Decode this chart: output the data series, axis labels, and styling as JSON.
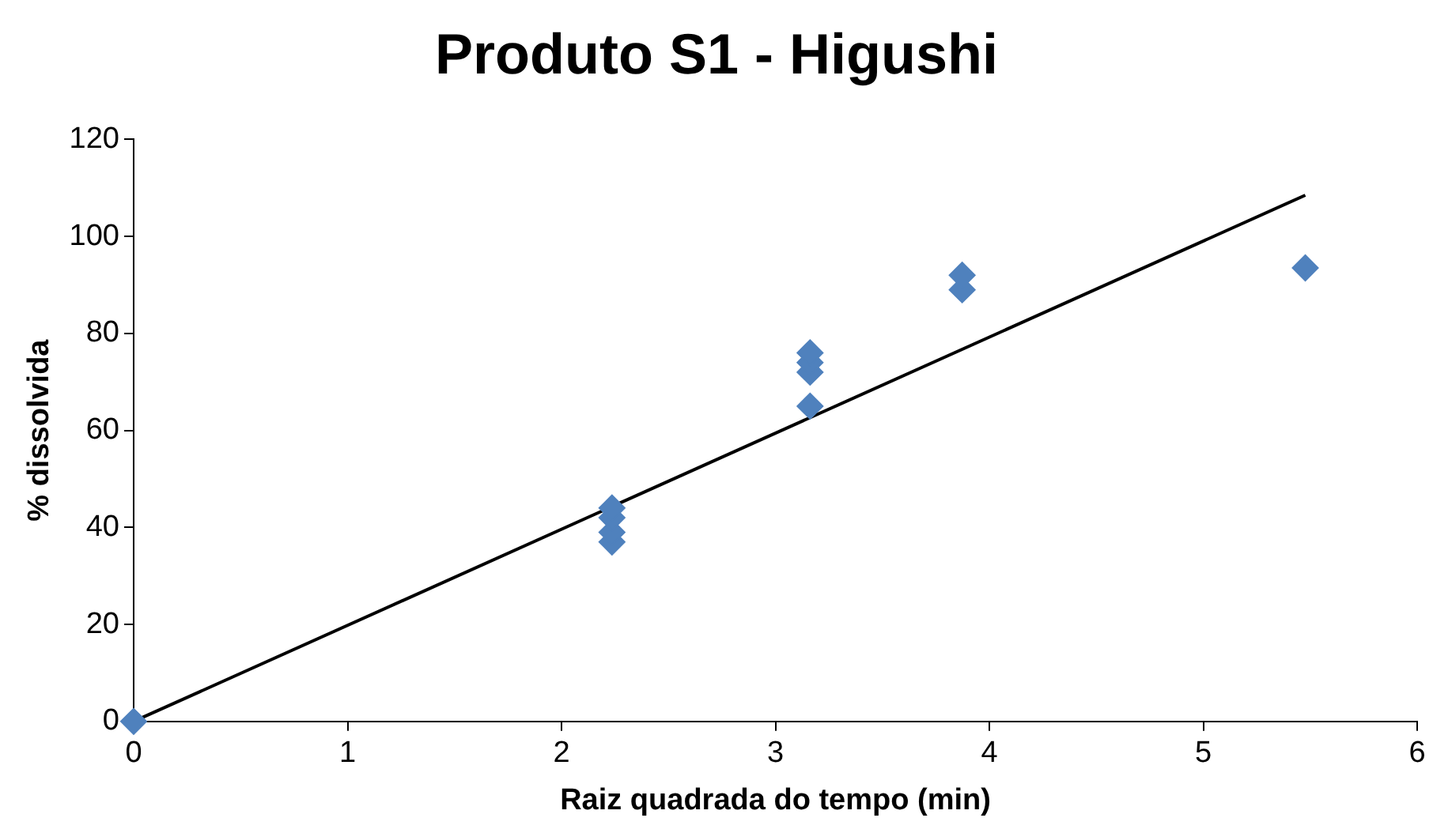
{
  "chart_data": {
    "type": "scatter",
    "title": "Produto S1 - Higushi",
    "xlabel": "Raiz quadrada do tempo (min)",
    "ylabel": "% dissolvida",
    "xlim": [
      0,
      6
    ],
    "xticks": [
      0,
      1,
      2,
      3,
      4,
      5,
      6
    ],
    "ylim": [
      0,
      120
    ],
    "yticks": [
      0,
      20,
      40,
      60,
      80,
      100,
      120
    ],
    "grid": false,
    "legend": false,
    "marker": "diamond",
    "series": [
      {
        "color": "#4f81bd",
        "x": [
          0,
          2.236,
          2.236,
          2.236,
          2.236,
          3.162,
          3.162,
          3.162,
          3.162,
          3.873,
          3.873,
          5.477
        ],
        "values": [
          0,
          37,
          39,
          42,
          44,
          65,
          72,
          74,
          76,
          89,
          92,
          93.5
        ]
      },
      {
        "type": "line",
        "color": "#000000",
        "marker": "none",
        "line_style": "solid",
        "x": [
          0,
          5.477
        ],
        "values": [
          0,
          108.5
        ]
      }
    ]
  }
}
